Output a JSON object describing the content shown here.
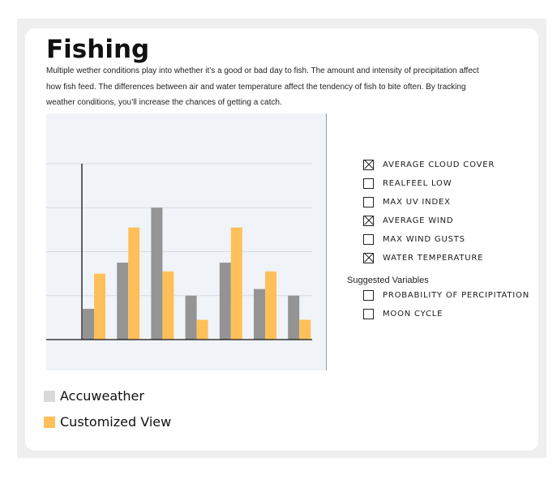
{
  "page": {
    "title": "Fishing",
    "description": "Multiple wether conditions play into whether it’s a good or bad day to fish. The amount and intensity of precipitation affect how fish feed. The differences between air and water temperature affect the tendency of fish to bite often. By tracking weather conditions, you’ll increase the chances of getting a catch."
  },
  "options": [
    {
      "label": "AVERAGE CLOUD COVER",
      "checked": true
    },
    {
      "label": "REALFEEL LOW",
      "checked": false
    },
    {
      "label": "MAX UV INDEX",
      "checked": false
    },
    {
      "label": "AVERAGE WIND",
      "checked": true
    },
    {
      "label": "MAX WIND GUSTS",
      "checked": false
    },
    {
      "label": "WATER TEMPERATURE",
      "checked": true
    }
  ],
  "suggested": {
    "heading": "Suggested Variables",
    "items": [
      {
        "label": "PROBABILITY OF PERCIPITATION",
        "checked": false
      },
      {
        "label": "MOON CYCLE",
        "checked": false
      }
    ]
  },
  "legend": [
    {
      "label": "Accuweather",
      "color": "#d9d9d9"
    },
    {
      "label": "Customized View",
      "color": "#ffc05a"
    }
  ],
  "chart_data": {
    "type": "bar",
    "categories": [
      "",
      "",
      "",
      "",
      "",
      "",
      ""
    ],
    "series": [
      {
        "name": "Accuweather",
        "color": "#949494",
        "values": [
          0.7,
          1.75,
          3.0,
          1.0,
          1.75,
          1.15,
          1.0
        ]
      },
      {
        "name": "Customized View",
        "color": "#ffc05a",
        "values": [
          1.5,
          2.55,
          1.55,
          0.45,
          2.55,
          1.55,
          0.45
        ]
      }
    ],
    "ylim": [
      0,
      4
    ],
    "grid": true,
    "background": "#f0f3f8",
    "title": "",
    "xlabel": "",
    "ylabel": ""
  }
}
